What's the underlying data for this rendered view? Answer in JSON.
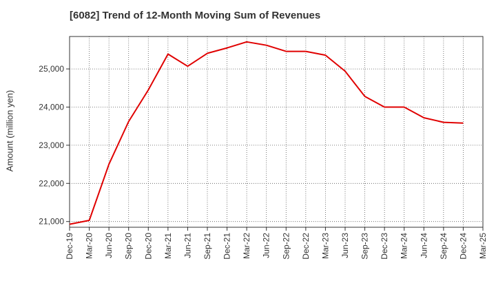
{
  "chart_data": {
    "type": "line",
    "title": "[6082]  Trend of 12-Month Moving Sum of Revenues",
    "xlabel": "",
    "ylabel": "Amount (million yen)",
    "x_ticks": [
      "Dec-19",
      "Mar-20",
      "Jun-20",
      "Sep-20",
      "Dec-20",
      "Mar-21",
      "Jun-21",
      "Sep-21",
      "Dec-21",
      "Mar-22",
      "Jun-22",
      "Sep-22",
      "Dec-22",
      "Mar-23",
      "Jun-23",
      "Sep-23",
      "Dec-23",
      "Mar-24",
      "Jun-24",
      "Sep-24",
      "Dec-24",
      "Mar-25"
    ],
    "y_ticks": [
      21000,
      22000,
      23000,
      24000,
      25000
    ],
    "y_tick_labels": [
      "21,000",
      "22,000",
      "23,000",
      "24,000",
      "25,000"
    ],
    "ylim": [
      20850,
      25850
    ],
    "grid": true,
    "series": [
      {
        "color": "#e00000",
        "x": [
          "Dec-19",
          "Mar-20",
          "Jun-20",
          "Sep-20",
          "Dec-20",
          "Mar-21",
          "Jun-21",
          "Sep-21",
          "Dec-21",
          "Mar-22",
          "Jun-22",
          "Sep-22",
          "Dec-22",
          "Mar-23",
          "Jun-23",
          "Sep-23",
          "Dec-23",
          "Mar-24",
          "Jun-24",
          "Sep-24",
          "Dec-24"
        ],
        "values": [
          20930,
          21030,
          22500,
          23620,
          24450,
          25390,
          25070,
          25410,
          25550,
          25710,
          25620,
          25460,
          25460,
          25360,
          24940,
          24280,
          24000,
          24000,
          23720,
          23600,
          23580
        ]
      }
    ]
  }
}
